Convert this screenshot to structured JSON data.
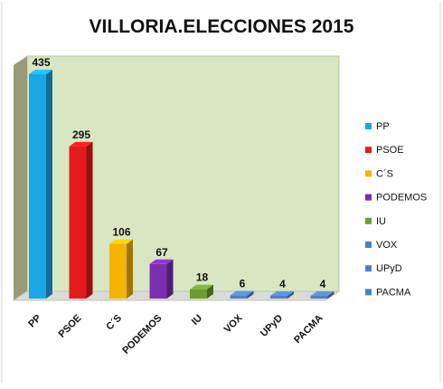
{
  "chart_data": {
    "type": "bar",
    "title": "VILLORIA.ELECCIONES 2015",
    "categories": [
      "PP",
      "PSOE",
      "C´S",
      "PODEMOS",
      "IU",
      "VOX",
      "UPyD",
      "PACMA"
    ],
    "values": [
      435,
      295,
      106,
      67,
      18,
      6,
      4,
      4
    ],
    "value_labels": [
      "435",
      "295",
      "106",
      "67",
      "18",
      "6",
      "4",
      "4"
    ],
    "colors": [
      "#1aa7e6",
      "#e31b1b",
      "#f4b400",
      "#7a2fb0",
      "#6f9a30",
      "#4f7fc0",
      "#4f7fc0",
      "#4f7fc0"
    ],
    "legend": [
      "PP",
      "PSOE",
      "C´S",
      "PODEMOS",
      "IU",
      "VOX",
      "UPyD",
      "PACMA"
    ],
    "legend_position": "right",
    "ylim": [
      0,
      450
    ],
    "grid": false,
    "plot_background": "#d9e6c2",
    "wall_color": "#9a9a78"
  }
}
